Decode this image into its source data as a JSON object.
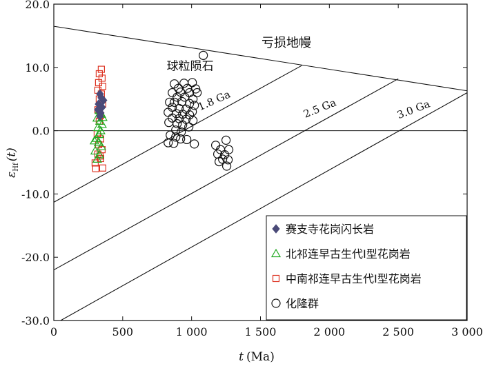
{
  "chart_data": {
    "type": "scatter",
    "xlabel_var": "t",
    "xlabel_unit": "(Ma)",
    "ylabel_var": "ε",
    "ylabel_sub": "Hf",
    "ylabel_arg": "(t)",
    "xlim": [
      0,
      3000
    ],
    "ylim": [
      -30,
      20
    ],
    "x_ticks": [
      0,
      500,
      1000,
      1500,
      2000,
      2500,
      3000
    ],
    "x_tick_labels": [
      "0",
      "500",
      "1 000",
      "1 500",
      "2 000",
      "2 500",
      "3 000"
    ],
    "y_ticks": [
      -30,
      -20,
      -10,
      0,
      10,
      20
    ],
    "y_tick_labels": [
      "-30.0",
      "-20.0",
      "-10.0",
      "0.0",
      "10.0",
      "20.0"
    ],
    "zero_line": 0,
    "reference_lines": [
      {
        "label": "亏损地幔",
        "x": [
          0,
          3000
        ],
        "y": [
          16.5,
          6.3
        ]
      },
      {
        "label": "1.8 Ga",
        "x": [
          0,
          1800
        ],
        "y": [
          -11.3,
          10.3
        ]
      },
      {
        "label": "2.5 Ga",
        "x": [
          0,
          2500
        ],
        "y": [
          -22.0,
          8.2
        ]
      },
      {
        "label": "3.0 Ga",
        "x": [
          0,
          3000
        ],
        "y": [
          -30.6,
          6.0
        ]
      }
    ],
    "annotations": [
      {
        "text": "球粒陨石",
        "x": 990,
        "y": 9.6
      }
    ],
    "legend_position": "bottom-right",
    "series": [
      {
        "name": "赛支寺花岗闪长岩",
        "marker": "diamond",
        "color": "#4a4a78",
        "points": [
          [
            335,
            5.8
          ],
          [
            345,
            5.2
          ],
          [
            360,
            4.8
          ],
          [
            325,
            4.2
          ],
          [
            350,
            3.7
          ],
          [
            320,
            3.3
          ],
          [
            340,
            2.8
          ],
          [
            335,
            2.3
          ]
        ]
      },
      {
        "name": "北祁连早古生代I型花岗岩",
        "marker": "triangle",
        "color": "#22aa22",
        "points": [
          [
            330,
            3.2
          ],
          [
            345,
            2.6
          ],
          [
            315,
            2.0
          ],
          [
            335,
            1.5
          ],
          [
            350,
            1.0
          ],
          [
            320,
            0.5
          ],
          [
            340,
            0.0
          ],
          [
            330,
            -0.6
          ],
          [
            310,
            -1.2
          ],
          [
            325,
            -1.9
          ],
          [
            345,
            -2.5
          ],
          [
            300,
            -3.2
          ],
          [
            330,
            -3.8
          ],
          [
            315,
            -4.5
          ],
          [
            295,
            -1.6
          ],
          [
            355,
            2.1
          ]
        ]
      },
      {
        "name": "中南祁连早古生代I型花岗岩",
        "marker": "square",
        "color": "#dd3322",
        "points": [
          [
            345,
            9.7
          ],
          [
            330,
            9.0
          ],
          [
            350,
            8.3
          ],
          [
            325,
            7.6
          ],
          [
            355,
            7.0
          ],
          [
            320,
            6.4
          ],
          [
            345,
            5.8
          ],
          [
            330,
            5.0
          ],
          [
            355,
            4.2
          ],
          [
            320,
            3.3
          ],
          [
            340,
            2.4
          ],
          [
            330,
            1.5
          ],
          [
            315,
            -0.5
          ],
          [
            340,
            -1.3
          ],
          [
            325,
            -2.2
          ],
          [
            350,
            -3.0
          ],
          [
            320,
            -3.7
          ],
          [
            340,
            -4.4
          ],
          [
            300,
            -5.1
          ],
          [
            305,
            -6.0
          ],
          [
            355,
            -5.9
          ],
          [
            335,
            -4.0
          ]
        ]
      },
      {
        "name": "化隆群",
        "marker": "circle",
        "color": "#111111",
        "points": [
          [
            1085,
            11.9
          ],
          [
            875,
            7.4
          ],
          [
            945,
            7.5
          ],
          [
            1005,
            7.6
          ],
          [
            905,
            6.7
          ],
          [
            970,
            6.7
          ],
          [
            1030,
            6.6
          ],
          [
            860,
            6.0
          ],
          [
            920,
            6.1
          ],
          [
            985,
            6.0
          ],
          [
            1040,
            6.0
          ],
          [
            895,
            5.3
          ],
          [
            950,
            5.3
          ],
          [
            1010,
            5.0
          ],
          [
            840,
            4.5
          ],
          [
            875,
            4.5
          ],
          [
            930,
            4.6
          ],
          [
            985,
            4.3
          ],
          [
            1020,
            4.0
          ],
          [
            860,
            3.7
          ],
          [
            910,
            3.5
          ],
          [
            960,
            3.4
          ],
          [
            1005,
            3.0
          ],
          [
            830,
            2.9
          ],
          [
            890,
            2.7
          ],
          [
            935,
            2.6
          ],
          [
            985,
            2.5
          ],
          [
            860,
            2.0
          ],
          [
            910,
            1.9
          ],
          [
            960,
            1.8
          ],
          [
            1010,
            1.6
          ],
          [
            835,
            1.3
          ],
          [
            895,
            1.1
          ],
          [
            935,
            0.9
          ],
          [
            980,
            0.6
          ],
          [
            885,
            0.1
          ],
          [
            925,
            -0.2
          ],
          [
            845,
            -0.7
          ],
          [
            885,
            -1.0
          ],
          [
            920,
            -1.3
          ],
          [
            965,
            -1.4
          ],
          [
            830,
            -1.9
          ],
          [
            870,
            -2.0
          ],
          [
            1020,
            -2.1
          ],
          [
            1250,
            -1.5
          ],
          [
            1175,
            -2.3
          ],
          [
            1210,
            -3.0
          ],
          [
            1270,
            -3.0
          ],
          [
            1190,
            -3.7
          ],
          [
            1240,
            -3.8
          ],
          [
            1225,
            -4.5
          ],
          [
            1265,
            -4.6
          ],
          [
            1200,
            -4.9
          ],
          [
            1255,
            -5.6
          ]
        ]
      }
    ]
  }
}
